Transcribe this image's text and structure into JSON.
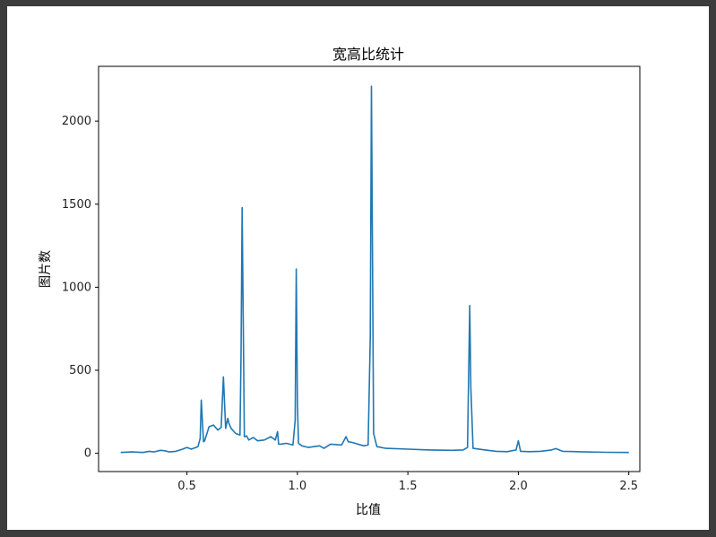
{
  "chart_data": {
    "type": "line",
    "title": "宽高比统计",
    "xlabel": "比值",
    "ylabel": "图片数",
    "xlim": [
      0.1,
      2.55
    ],
    "ylim": [
      -110,
      2330
    ],
    "xticks": [
      0.5,
      1.0,
      1.5,
      2.0,
      2.5
    ],
    "xtick_labels": [
      "0.5",
      "1.0",
      "1.5",
      "2.0",
      "2.5"
    ],
    "yticks": [
      0,
      500,
      1000,
      1500,
      2000
    ],
    "ytick_labels": [
      "0",
      "500",
      "1000",
      "1500",
      "2000"
    ],
    "grid": false,
    "line_color": "#1f77b4",
    "series": [
      {
        "x": [
          0.2,
          0.25,
          0.3,
          0.33,
          0.35,
          0.38,
          0.4,
          0.42,
          0.45,
          0.48,
          0.5,
          0.52,
          0.55,
          0.56,
          0.565,
          0.575,
          0.58,
          0.6,
          0.62,
          0.64,
          0.655,
          0.665,
          0.675,
          0.685,
          0.69,
          0.7,
          0.72,
          0.74,
          0.745,
          0.75,
          0.76,
          0.77,
          0.78,
          0.8,
          0.82,
          0.85,
          0.88,
          0.9,
          0.91,
          0.915,
          0.925,
          0.95,
          0.98,
          0.99,
          0.995,
          1.0,
          1.005,
          1.02,
          1.05,
          1.1,
          1.12,
          1.15,
          1.2,
          1.22,
          1.23,
          1.25,
          1.3,
          1.32,
          1.33,
          1.335,
          1.345,
          1.36,
          1.4,
          1.5,
          1.6,
          1.7,
          1.75,
          1.77,
          1.78,
          1.785,
          1.795,
          1.85,
          1.9,
          1.95,
          1.99,
          2.0,
          2.01,
          2.05,
          2.1,
          2.15,
          2.17,
          2.2,
          2.3,
          2.4,
          2.5
        ],
        "y": [
          5,
          8,
          5,
          12,
          8,
          18,
          15,
          8,
          12,
          25,
          35,
          25,
          40,
          90,
          320,
          70,
          75,
          160,
          170,
          140,
          155,
          460,
          150,
          210,
          180,
          150,
          120,
          110,
          600,
          1480,
          100,
          105,
          80,
          95,
          75,
          80,
          100,
          80,
          130,
          55,
          55,
          60,
          50,
          200,
          1110,
          300,
          60,
          45,
          35,
          45,
          30,
          55,
          50,
          100,
          70,
          65,
          45,
          50,
          700,
          2210,
          120,
          40,
          30,
          25,
          20,
          18,
          20,
          35,
          890,
          400,
          30,
          20,
          12,
          10,
          20,
          75,
          12,
          10,
          12,
          20,
          28,
          12,
          8,
          6,
          5
        ]
      }
    ]
  }
}
